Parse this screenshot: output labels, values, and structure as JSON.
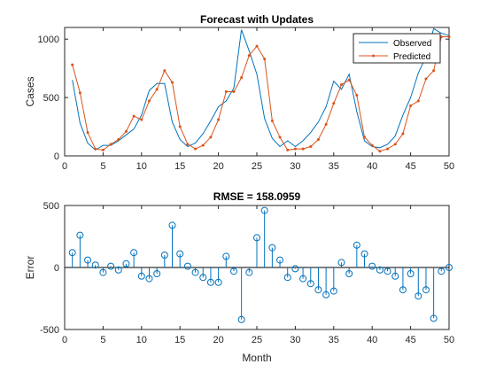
{
  "figure": {
    "background": "#ffffff"
  },
  "chart_data": [
    {
      "type": "line",
      "title": "Forecast with Updates",
      "xlabel": "",
      "ylabel": "Cases",
      "xlim": [
        0,
        50
      ],
      "ylim": [
        0,
        1100
      ],
      "xticks": [
        0,
        5,
        10,
        15,
        20,
        25,
        30,
        35,
        40,
        45,
        50
      ],
      "yticks": [
        0,
        500,
        1000
      ],
      "grid": false,
      "legend_position": "top-right",
      "x": [
        1,
        2,
        3,
        4,
        5,
        6,
        7,
        8,
        9,
        10,
        11,
        12,
        13,
        14,
        15,
        16,
        17,
        18,
        19,
        20,
        21,
        22,
        23,
        24,
        25,
        26,
        27,
        28,
        29,
        30,
        31,
        32,
        33,
        34,
        35,
        36,
        37,
        38,
        39,
        40,
        41,
        42,
        43,
        44,
        45,
        46,
        47,
        48,
        49,
        50
      ],
      "series": [
        {
          "name": "Observed",
          "color": "#0072bd",
          "marker": "none",
          "values": [
            650,
            280,
            110,
            50,
            90,
            90,
            130,
            180,
            230,
            350,
            560,
            620,
            620,
            290,
            140,
            80,
            110,
            190,
            300,
            420,
            470,
            580,
            1080,
            900,
            700,
            320,
            150,
            80,
            130,
            80,
            130,
            200,
            290,
            420,
            640,
            570,
            700,
            380,
            130,
            80,
            70,
            100,
            170,
            350,
            500,
            710,
            850,
            1090,
            1050,
            1030
          ]
        },
        {
          "name": "Predicted",
          "color": "#d95319",
          "marker": "point",
          "values": [
            780,
            540,
            200,
            60,
            50,
            100,
            140,
            210,
            340,
            310,
            470,
            570,
            730,
            630,
            250,
            100,
            60,
            90,
            160,
            310,
            550,
            550,
            670,
            860,
            940,
            830,
            300,
            160,
            50,
            60,
            60,
            80,
            140,
            270,
            450,
            610,
            650,
            520,
            160,
            90,
            40,
            60,
            100,
            190,
            430,
            470,
            660,
            730,
            1020,
            1020
          ]
        }
      ]
    },
    {
      "type": "stem",
      "title": "RMSE = 158.0959",
      "xlabel": "Month",
      "ylabel": "Error",
      "xlim": [
        0,
        50
      ],
      "ylim": [
        -500,
        500
      ],
      "xticks": [
        0,
        5,
        10,
        15,
        20,
        25,
        30,
        35,
        40,
        45,
        50
      ],
      "yticks": [
        -500,
        0,
        500
      ],
      "grid": false,
      "color": "#0072bd",
      "x": [
        1,
        2,
        3,
        4,
        5,
        6,
        7,
        8,
        9,
        10,
        11,
        12,
        13,
        14,
        15,
        16,
        17,
        18,
        19,
        20,
        21,
        22,
        23,
        24,
        25,
        26,
        27,
        28,
        29,
        30,
        31,
        32,
        33,
        34,
        35,
        36,
        37,
        38,
        39,
        40,
        41,
        42,
        43,
        44,
        45,
        46,
        47,
        48,
        49,
        50
      ],
      "values": [
        120,
        260,
        60,
        20,
        -40,
        10,
        -20,
        30,
        120,
        -70,
        -90,
        -50,
        100,
        340,
        110,
        10,
        -40,
        -80,
        -120,
        -120,
        90,
        -30,
        -420,
        -40,
        240,
        460,
        160,
        60,
        -80,
        -10,
        -90,
        -130,
        -180,
        -220,
        -190,
        40,
        -50,
        180,
        110,
        10,
        -20,
        -30,
        -70,
        -180,
        -50,
        -230,
        -180,
        -410,
        -30,
        0
      ]
    }
  ]
}
